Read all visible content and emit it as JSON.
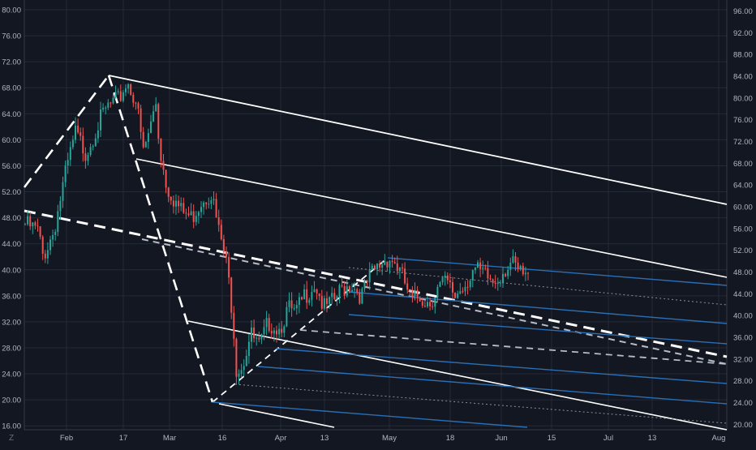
{
  "chart_data": {
    "type": "candlestick",
    "x_axis": {
      "tick_labels": [
        "Feb",
        "17",
        "Mar",
        "16",
        "Apr",
        "13",
        "May",
        "18",
        "Jun",
        "15",
        "Jul",
        "13",
        "Aug"
      ]
    },
    "y_axis_left": {
      "range": [
        15.4,
        81.5
      ],
      "tick_values": [
        16,
        20,
        24,
        28,
        32,
        36,
        40,
        44,
        48,
        52,
        56,
        60,
        64,
        68,
        72,
        76,
        80
      ],
      "tick_labels": [
        "16.00",
        "20.00",
        "24.00",
        "28.00",
        "32.00",
        "36.00",
        "40.00",
        "44.00",
        "48.00",
        "52.00",
        "56.00",
        "60.00",
        "64.00",
        "68.00",
        "72.00",
        "76.00",
        "80.00"
      ]
    },
    "y_axis_right": {
      "range": [
        19.0,
        98.0
      ],
      "tick_values": [
        20,
        24,
        28,
        32,
        36,
        40,
        44,
        48,
        52,
        56,
        60,
        64,
        68,
        72,
        76,
        80,
        84,
        88,
        92,
        96
      ],
      "tick_labels": [
        "20.00",
        "24.00",
        "28.00",
        "32.00",
        "36.00",
        "40.00",
        "44.00",
        "48.00",
        "52.00",
        "56.00",
        "60.00",
        "64.00",
        "68.00",
        "72.00",
        "76.00",
        "80.00",
        "84.00",
        "88.00",
        "92.00",
        "96.00"
      ]
    },
    "grid": true,
    "price_path": [
      [
        0,
        47
      ],
      [
        14,
        46
      ],
      [
        20,
        42
      ],
      [
        32,
        46
      ],
      [
        44,
        54
      ],
      [
        56,
        61
      ],
      [
        68,
        58
      ],
      [
        80,
        62
      ],
      [
        92,
        65
      ],
      [
        104,
        66
      ],
      [
        114,
        69
      ],
      [
        124,
        66
      ],
      [
        132,
        58
      ],
      [
        140,
        62
      ],
      [
        146,
        66
      ],
      [
        150,
        59
      ],
      [
        158,
        53
      ],
      [
        166,
        51
      ],
      [
        174,
        49
      ],
      [
        186,
        48
      ],
      [
        198,
        51
      ],
      [
        208,
        52
      ],
      [
        216,
        46
      ],
      [
        220,
        44
      ],
      [
        226,
        40
      ],
      [
        232,
        33
      ],
      [
        236,
        25
      ],
      [
        240,
        25
      ],
      [
        244,
        26
      ],
      [
        252,
        30
      ],
      [
        262,
        28
      ],
      [
        272,
        32
      ],
      [
        284,
        31
      ],
      [
        294,
        34
      ],
      [
        302,
        33
      ],
      [
        312,
        36
      ],
      [
        324,
        38
      ],
      [
        334,
        34
      ],
      [
        344,
        35
      ],
      [
        354,
        37
      ],
      [
        364,
        38
      ],
      [
        376,
        36
      ],
      [
        386,
        39
      ],
      [
        398,
        41
      ],
      [
        406,
        42
      ],
      [
        414,
        41
      ],
      [
        424,
        38
      ],
      [
        432,
        35
      ],
      [
        440,
        36
      ],
      [
        452,
        35
      ],
      [
        460,
        37
      ],
      [
        470,
        38
      ],
      [
        480,
        36
      ],
      [
        492,
        38
      ],
      [
        500,
        40
      ],
      [
        514,
        39
      ],
      [
        524,
        38
      ],
      [
        534,
        40
      ],
      [
        542,
        41
      ],
      [
        552,
        39.5
      ],
      [
        562,
        38.5
      ]
    ],
    "wick_range": 1.3,
    "colors": {
      "up": "#26a69a",
      "down": "#ef5350",
      "grid": "#252a37",
      "axis_text": "#b2b5be",
      "trend_lines": "#ffffff",
      "fork_lines": "#2a6fb5"
    }
  }
}
